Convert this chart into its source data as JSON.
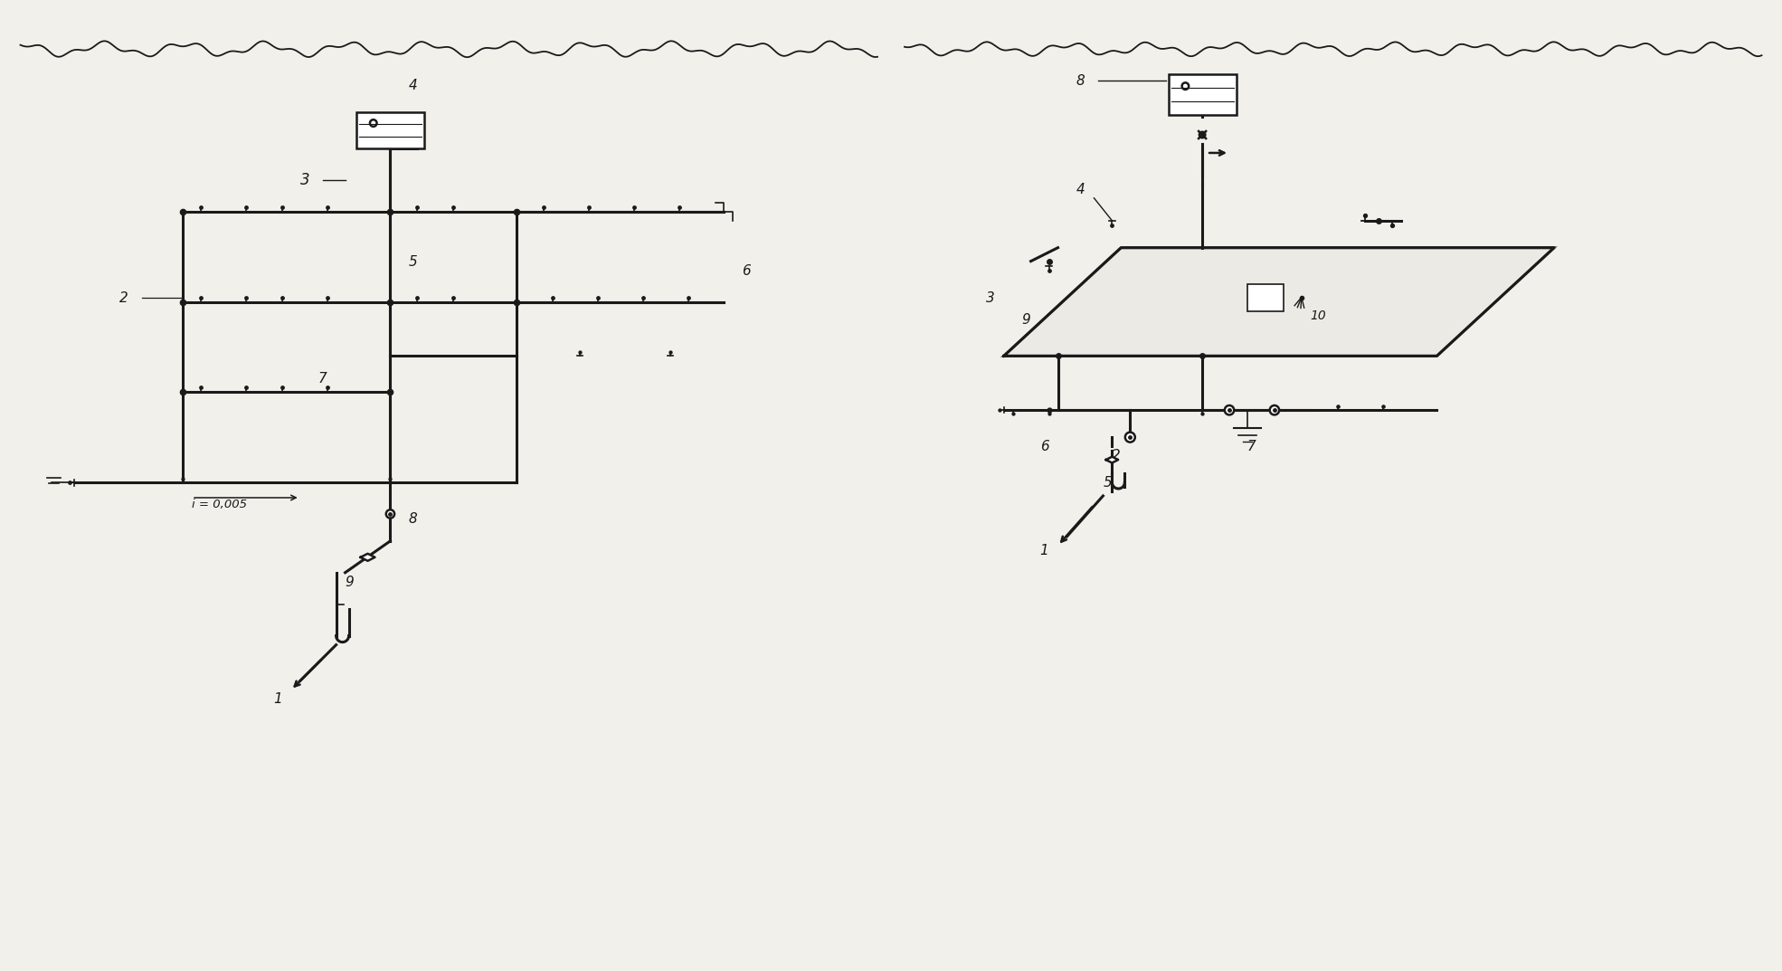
{
  "bg_color": "#f2f0eb",
  "line_color": "#1a1a1a",
  "lw": 1.8,
  "lw2": 2.2,
  "figsize": [
    19.7,
    10.73
  ]
}
